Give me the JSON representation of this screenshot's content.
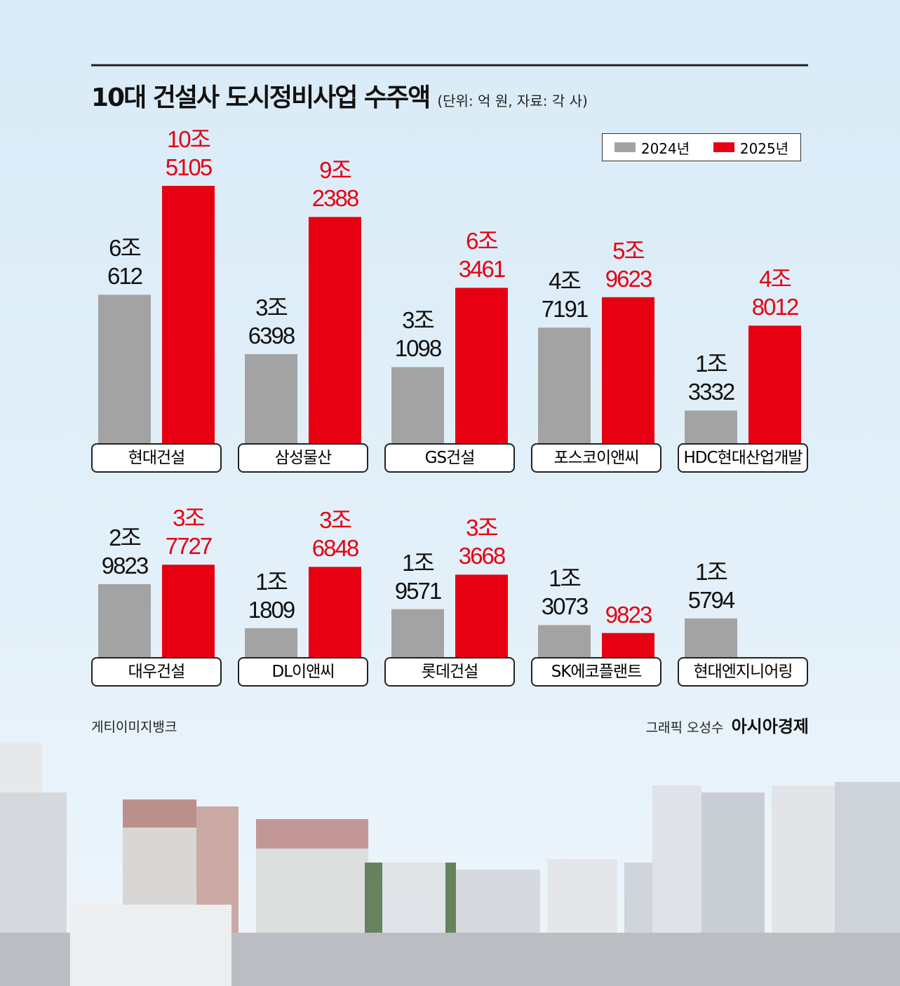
{
  "chart_data": {
    "type": "bar",
    "title": "10대 건설사 도시정비사업 수주액",
    "subtitle": "(단위: 억 원, 자료: 각 사)",
    "categories": [
      "현대건설",
      "삼성물산",
      "GS건설",
      "포스코이앤씨",
      "HDC현대산업개발",
      "대우건설",
      "DL이앤씨",
      "롯데건설",
      "SK에코플랜트",
      "현대엔지니어링"
    ],
    "series": [
      {
        "name": "2024년",
        "color": "#a3a3a3",
        "label_color": "#111111",
        "values": [
          60612,
          36398,
          31098,
          47191,
          13332,
          29823,
          11809,
          19571,
          13073,
          15794
        ],
        "value_labels": [
          "6조\n612",
          "3조\n6398",
          "3조\n1098",
          "4조\n7191",
          "1조\n3332",
          "2조\n9823",
          "1조\n1809",
          "1조\n9571",
          "1조\n3073",
          "1조\n5794"
        ]
      },
      {
        "name": "2025년",
        "color": "#e60012",
        "label_color": "#e60012",
        "values": [
          105105,
          92388,
          63461,
          59623,
          48012,
          37727,
          36848,
          33668,
          9823,
          null
        ],
        "value_labels": [
          "10조\n5105",
          "9조\n2388",
          "6조\n3461",
          "5조\n9623",
          "4조\n8012",
          "3조\n7727",
          "3조\n6848",
          "3조\n3668",
          "9823",
          null
        ]
      }
    ],
    "legend": "top-right",
    "credits": {
      "photo": "게티이미지뱅크",
      "graphic": "그래픽 오성수",
      "publisher": "아시아경제"
    }
  }
}
